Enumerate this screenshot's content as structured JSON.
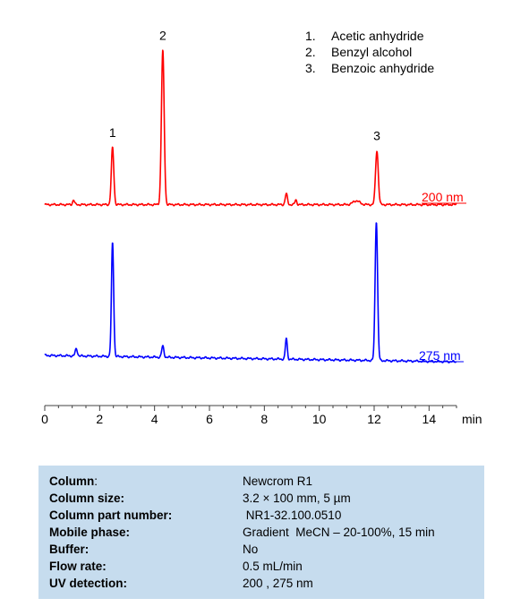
{
  "chart_data": {
    "type": "line",
    "xlabel": "min",
    "xlim": [
      0,
      15
    ],
    "x_ticks": [
      "0",
      "2",
      "4",
      "6",
      "8",
      "10",
      "12",
      "14"
    ],
    "grid": false,
    "series": [
      {
        "name": "200 nm",
        "color": "#ff0000",
        "baseline": 0.02,
        "peaks": [
          {
            "x": 1.05,
            "height": 0.03,
            "width": 0.035
          },
          {
            "x": 2.47,
            "height": 0.37,
            "width": 0.045
          },
          {
            "x": 4.3,
            "height": 1.0,
            "width": 0.05
          },
          {
            "x": 8.8,
            "height": 0.07,
            "width": 0.04
          },
          {
            "x": 9.15,
            "height": 0.03,
            "width": 0.035
          },
          {
            "x": 11.35,
            "height": 0.025,
            "width": 0.12
          },
          {
            "x": 12.1,
            "height": 0.35,
            "width": 0.05
          }
        ]
      },
      {
        "name": "275 nm",
        "color": "#0000ff",
        "baseline": 0.0,
        "drift": -0.04,
        "peaks": [
          {
            "x": 1.15,
            "height": 0.045,
            "width": 0.04
          },
          {
            "x": 2.47,
            "height": 0.72,
            "width": 0.04
          },
          {
            "x": 4.3,
            "height": 0.07,
            "width": 0.04
          },
          {
            "x": 8.8,
            "height": 0.13,
            "width": 0.035
          },
          {
            "x": 12.08,
            "height": 0.88,
            "width": 0.045
          }
        ]
      }
    ],
    "peak_labels": [
      {
        "label": "1",
        "x": 2.47
      },
      {
        "label": "2",
        "x": 4.3
      },
      {
        "label": "3",
        "x": 12.1
      }
    ]
  },
  "legend": [
    {
      "num": "1.",
      "name": "Acetic anhydride"
    },
    {
      "num": "2.",
      "name": "Benzyl alcohol"
    },
    {
      "num": "3.",
      "name": "Benzoic anhydride"
    }
  ],
  "info": [
    {
      "label": "Column",
      "value": "Newcrom R1",
      "bold": false,
      "suffix": ":"
    },
    {
      "label": "Column size:",
      "value": "3.2 × 100 mm, 5 µm",
      "bold": true,
      "suffix": ""
    },
    {
      "label": "Column part number:",
      "value": " NR1-32.100.0510",
      "bold": true,
      "suffix": ""
    },
    {
      "label": "Mobile phase:",
      "value": "Gradient  MeCN – 20-100%, 15 min",
      "bold": true,
      "suffix": ""
    },
    {
      "label": "Buffer:",
      "value": "No",
      "bold": true,
      "suffix": ""
    },
    {
      "label": "Flow rate:",
      "value": "0.5 mL/min",
      "bold": true,
      "suffix": ""
    },
    {
      "label": "UV detection:",
      "value": "200 , 275 nm",
      "bold": true,
      "suffix": ""
    }
  ]
}
